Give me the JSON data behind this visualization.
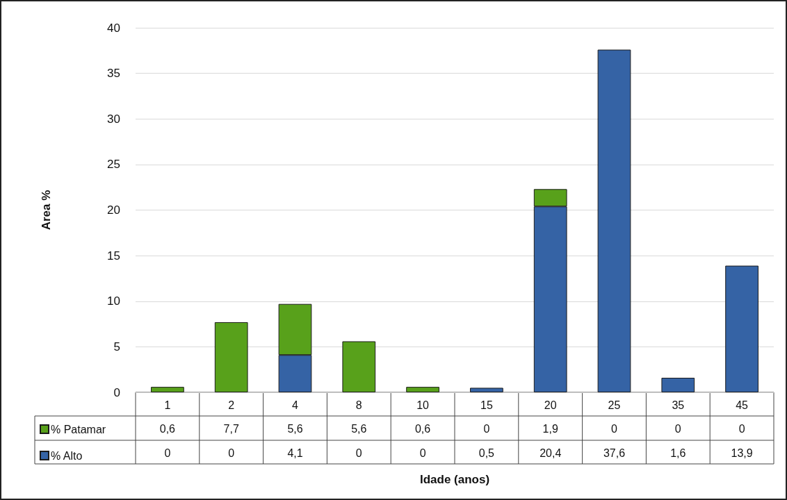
{
  "chart_data": {
    "type": "bar",
    "stacked": true,
    "annotations": [
      "Idade (anos)"
    ],
    "ylabel": "Area %",
    "categories": [
      "1",
      "2",
      "4",
      "8",
      "10",
      "15",
      "20",
      "25",
      "35",
      "45"
    ],
    "series": [
      {
        "name": "% Alto",
        "color": "#3563a5",
        "values": [
          0,
          0,
          4.1,
          0,
          0,
          0.5,
          20.4,
          37.6,
          1.6,
          13.9
        ],
        "value_labels": [
          "0",
          "0",
          "4,1",
          "0",
          "0",
          "0,5",
          "20,4",
          "37,6",
          "1,6",
          "13,9"
        ]
      },
      {
        "name": "% Patamar",
        "color": "#58a11b",
        "values": [
          0.6,
          7.7,
          5.6,
          5.6,
          0.6,
          0,
          1.9,
          0,
          0,
          0
        ],
        "value_labels": [
          "0,6",
          "7,7",
          "5,6",
          "5,6",
          "0,6",
          "0",
          "1,9",
          "0",
          "0",
          "0"
        ]
      }
    ],
    "ylim": [
      0,
      40
    ],
    "yticks": [
      0,
      5,
      10,
      15,
      20,
      25,
      30,
      35,
      40
    ],
    "grid": "y",
    "legend": "bottom left"
  }
}
